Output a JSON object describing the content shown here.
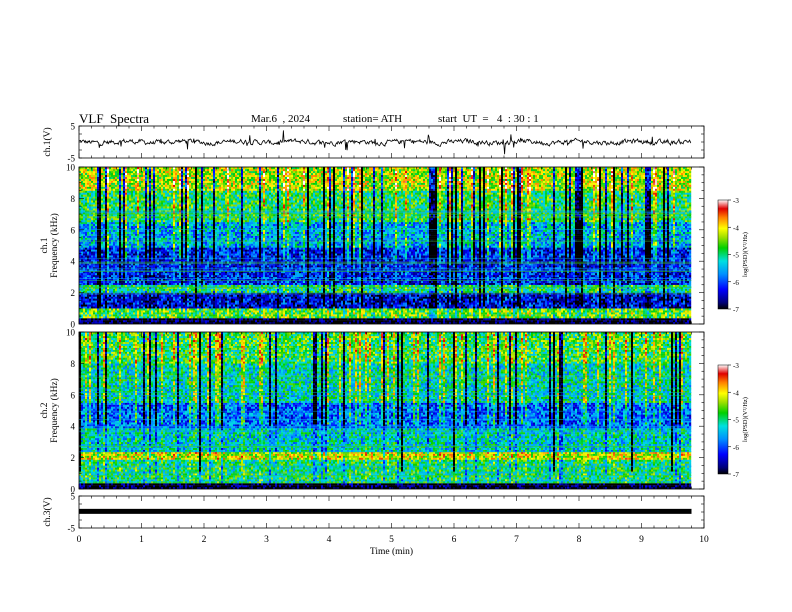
{
  "header": {
    "title": "VLF  Spectra",
    "date": "Mar.6  , 2024",
    "station": "station= ATH",
    "start_ut": "start  UT  =   4  : 30 : 1"
  },
  "chart_data": [
    {
      "type": "line",
      "panel": "ch1-waveform",
      "ylabel": "ch.1(V)",
      "ylim": [
        -5,
        5
      ],
      "yticks": [
        "5",
        "-5"
      ],
      "xlim": [
        0,
        10
      ],
      "data_span_min": [
        0,
        9.8
      ],
      "baseline_v": 0,
      "series": [
        {
          "values_note": "",
          "amplitude_v_typical": 1.2,
          "amplitude_v_spikes": 3
        }
      ]
    },
    {
      "type": "heatmap",
      "panel": "ch1-spectrogram",
      "ylabel": "ch.1\nFrequency  (kHz)",
      "ylim": [
        0,
        10
      ],
      "yticks": [
        "0",
        "2",
        "4",
        "6",
        "8",
        "10"
      ],
      "xlim": [
        0,
        10
      ],
      "colorbar": {
        "label": "log(PSD)(V²/Hz)",
        "range": [
          -7,
          -3
        ],
        "ticks": [
          "-3",
          "-4",
          "-5",
          "-6",
          "-7"
        ]
      },
      "bands_khz": [
        {
          "range": [
            0.0,
            0.3
          ],
          "log_psd": -7
        },
        {
          "range": [
            0.3,
            0.9
          ],
          "log_psd": -4.6
        },
        {
          "range": [
            0.9,
            1.9
          ],
          "log_psd": -6.4
        },
        {
          "range": [
            1.9,
            2.4
          ],
          "log_psd": -5.0
        },
        {
          "range": [
            2.4,
            4.8
          ],
          "log_psd": -6.2
        },
        {
          "range": [
            4.8,
            6.5
          ],
          "log_psd": -5.5
        },
        {
          "range": [
            6.5,
            8.5
          ],
          "log_psd": -4.9
        },
        {
          "range": [
            8.5,
            10.0
          ],
          "log_psd": -4.3
        }
      ]
    },
    {
      "type": "heatmap",
      "panel": "ch2-spectrogram",
      "ylabel": "ch.2\nFrequency  (kHz)",
      "ylim": [
        0,
        10
      ],
      "yticks": [
        "0",
        "2",
        "4",
        "6",
        "8",
        "10"
      ],
      "xlim": [
        0,
        10
      ],
      "colorbar": {
        "label": "log(PSD)(V²/Hz)",
        "range": [
          -7,
          -3
        ],
        "ticks": [
          "-3",
          "-4",
          "-5",
          "-6",
          "-7"
        ]
      },
      "bands_khz": [
        {
          "range": [
            0.0,
            0.3
          ],
          "log_psd": -7
        },
        {
          "range": [
            0.3,
            1.8
          ],
          "log_psd": -5.0
        },
        {
          "range": [
            1.8,
            2.3
          ],
          "log_psd": -4.2
        },
        {
          "range": [
            2.3,
            3.8
          ],
          "log_psd": -5.3
        },
        {
          "range": [
            3.8,
            5.5
          ],
          "log_psd": -5.9
        },
        {
          "range": [
            5.5,
            8.0
          ],
          "log_psd": -5.2
        },
        {
          "range": [
            8.0,
            10.0
          ],
          "log_psd": -4.8
        }
      ]
    },
    {
      "type": "line",
      "panel": "ch3-waveform",
      "ylabel": "ch.3(V)",
      "ylim": [
        -5,
        5
      ],
      "yticks": [
        "5",
        "-5"
      ],
      "xlim": [
        0,
        10
      ],
      "xlabel": "Time  (min)",
      "xticks": [
        "0",
        "1",
        "2",
        "3",
        "4",
        "5",
        "6",
        "7",
        "8",
        "9",
        "10"
      ],
      "data_span_min": [
        0,
        9.8
      ],
      "baseline_v": 0.2
    }
  ]
}
